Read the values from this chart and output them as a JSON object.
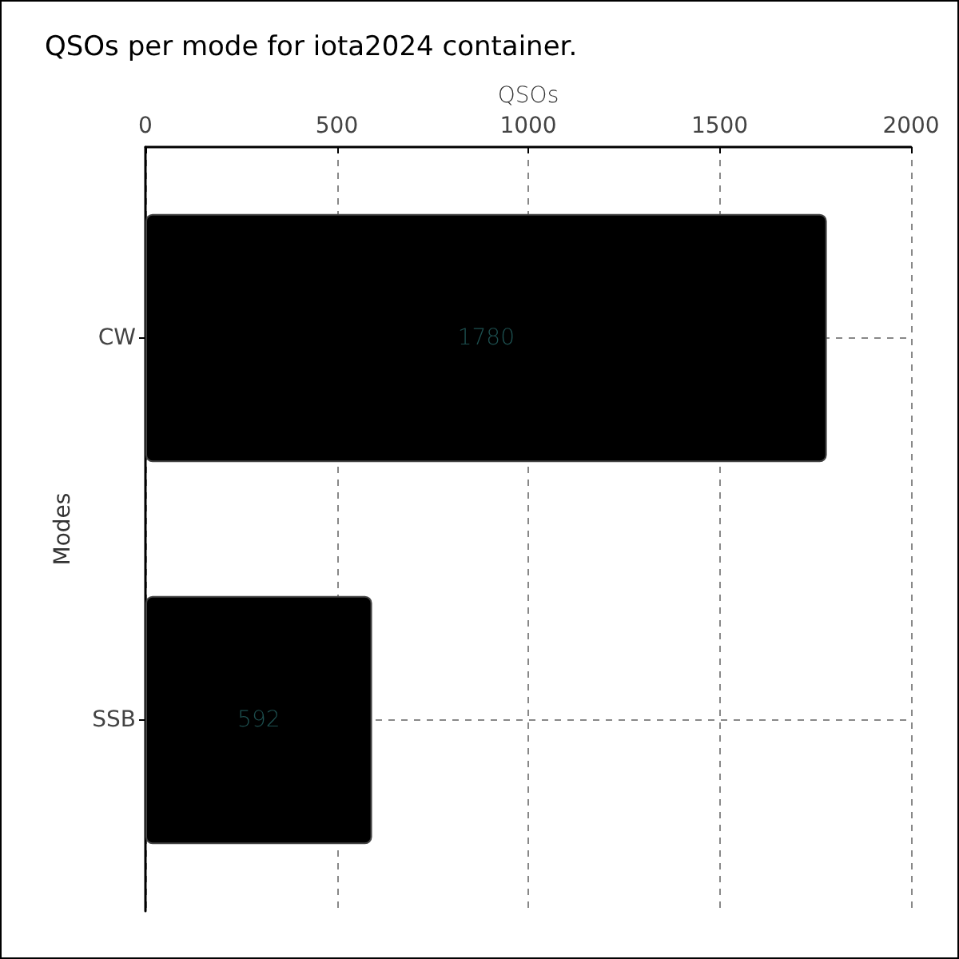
{
  "chart_data": {
    "type": "bar",
    "title": "QSOs per mode for iota2024 container.",
    "xlabel": "QSOs",
    "ylabel": "Modes",
    "orientation": "horizontal",
    "categories": [
      "CW",
      "SSB"
    ],
    "values": [
      1780,
      592
    ],
    "color": "#000000",
    "xlim": [
      0,
      2000
    ],
    "xticks": [
      0,
      500,
      1000,
      1500,
      2000
    ],
    "grid": true,
    "data_labels": true
  }
}
